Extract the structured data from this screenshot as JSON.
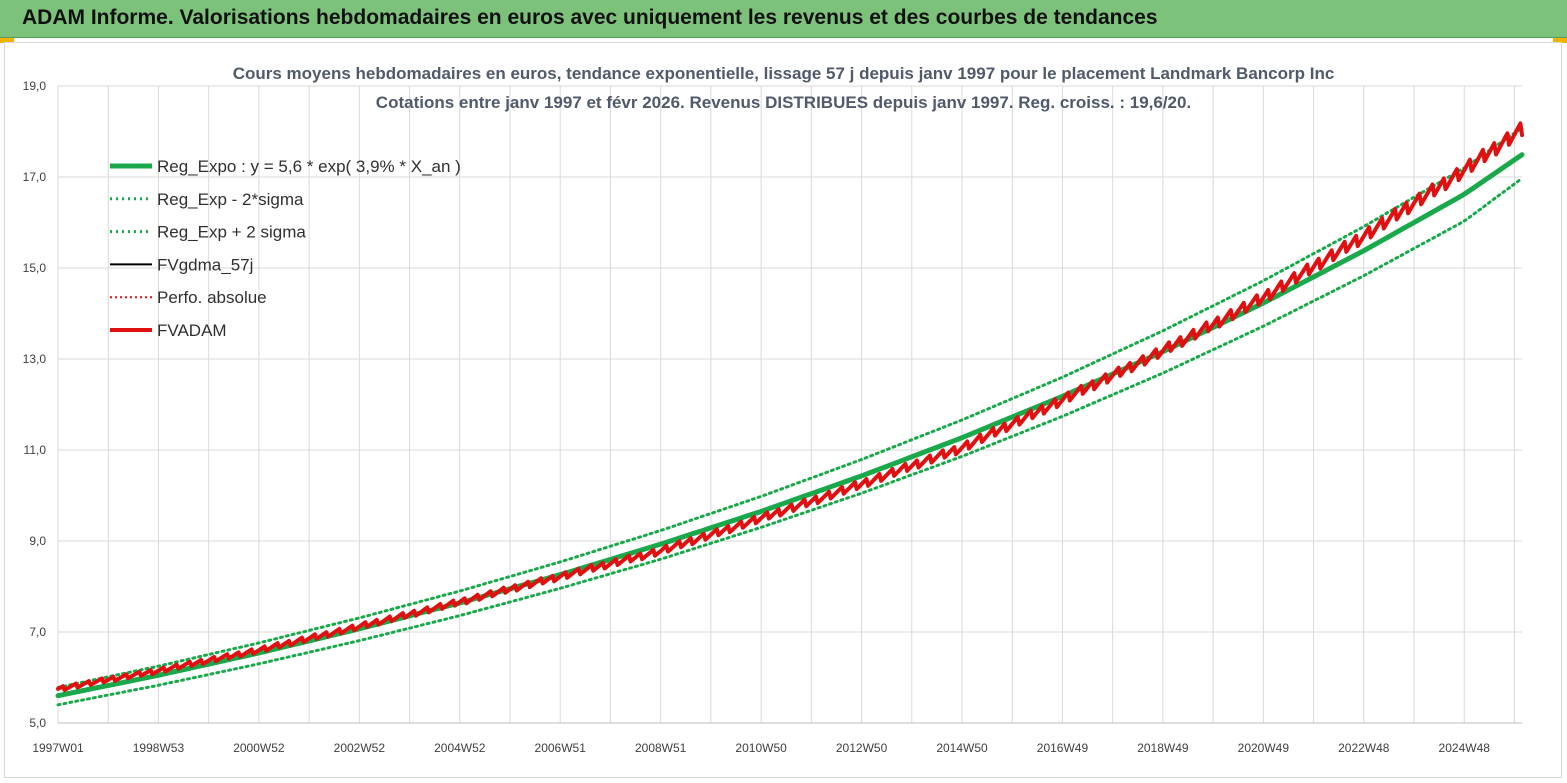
{
  "banner": {
    "title": "ADAM Informe. Valorisations hebdomadaires en euros avec uniquement les revenus et des courbes de tendances"
  },
  "colors": {
    "banner": "#7dc27a",
    "reg_expo": "#19a94a",
    "sigma": "#19a94a",
    "fvgdma": "#000000",
    "perfo": "#e01010",
    "fvadam": "#e01010",
    "grid": "#d9d9d9"
  },
  "chart_data": {
    "type": "line",
    "title": "Cours moyens hebdomadaires en euros, tendance exponentielle, lissage 57 j depuis janv 1997 pour le placement Landmark Bancorp Inc",
    "subtitle": "Cotations entre janv 1997 et févr 2026. Revenus DISTRIBUES depuis janv 1997. Reg. croiss. : 19,6/20.",
    "xlabel": "",
    "ylabel": "",
    "x_ticks": [
      "1997W01",
      "1998W53",
      "2000W52",
      "2002W52",
      "2004W52",
      "2006W51",
      "2008W51",
      "2010W50",
      "2012W50",
      "2014W50",
      "2016W49",
      "2018W49",
      "2020W49",
      "2022W48",
      "2024W48"
    ],
    "x_range": [
      1997.0,
      2026.15
    ],
    "y_ticks": [
      "5,0",
      "7,0",
      "9,0",
      "11,0",
      "13,0",
      "15,0",
      "17,0",
      "19,0"
    ],
    "ylim": [
      5,
      19
    ],
    "grid": true,
    "legend_position": "top-left",
    "series": [
      {
        "key": "reg_expo",
        "name": "Reg_Expo : y = 5,6 * exp( 3,9% *  X_an )",
        "style": "solid-thick",
        "x": [
          1997,
          1999,
          2001,
          2003,
          2005,
          2007,
          2009,
          2011,
          2013,
          2015,
          2017,
          2019,
          2021,
          2023,
          2025,
          2026.15
        ],
        "values": [
          5.6,
          6.05,
          6.54,
          7.07,
          7.64,
          8.26,
          8.93,
          9.65,
          10.43,
          11.27,
          12.18,
          13.16,
          14.23,
          15.38,
          16.62,
          17.49
        ]
      },
      {
        "key": "sigma_minus",
        "name": "Reg_Exp - 2*sigma",
        "style": "dotted",
        "x": [
          1997,
          1999,
          2001,
          2003,
          2005,
          2007,
          2009,
          2011,
          2013,
          2015,
          2017,
          2019,
          2021,
          2023,
          2025,
          2026.15
        ],
        "values": [
          5.4,
          5.83,
          6.3,
          6.81,
          7.36,
          7.96,
          8.6,
          9.3,
          10.05,
          10.86,
          11.74,
          12.69,
          13.72,
          14.83,
          16.03,
          16.97
        ]
      },
      {
        "key": "sigma_plus",
        "name": "Reg_Exp + 2 sigma",
        "style": "dotted",
        "x": [
          1997,
          1999,
          2001,
          2003,
          2005,
          2007,
          2009,
          2011,
          2013,
          2015,
          2017,
          2019,
          2021,
          2023,
          2025,
          2026.15
        ],
        "values": [
          5.78,
          6.25,
          6.76,
          7.31,
          7.9,
          8.54,
          9.23,
          9.98,
          10.79,
          11.66,
          12.6,
          13.62,
          14.72,
          15.91,
          17.2,
          18.08
        ]
      },
      {
        "key": "fvgdma",
        "name": "FVgdma_57j",
        "style": "solid",
        "x": [
          1997,
          1999,
          2001,
          2003,
          2005,
          2007,
          2009,
          2011,
          2013,
          2015,
          2017,
          2019,
          2021,
          2023,
          2025,
          2026.15
        ],
        "values": [
          5.75,
          6.15,
          6.6,
          7.12,
          7.66,
          8.22,
          8.78,
          9.5,
          10.25,
          11.05,
          12.1,
          13.18,
          14.35,
          15.7,
          17.15,
          18.05
        ]
      },
      {
        "key": "perfo",
        "name": "Perfo. absolue",
        "style": "dotted",
        "x": [
          1997,
          1999,
          2001,
          2003,
          2005,
          2007,
          2009,
          2011,
          2013,
          2015,
          2017,
          2019,
          2021,
          2023,
          2025,
          2026.15
        ],
        "values": [
          5.75,
          6.15,
          6.6,
          7.12,
          7.66,
          8.22,
          8.78,
          9.5,
          10.25,
          11.05,
          12.1,
          13.18,
          14.35,
          15.7,
          17.15,
          18.05
        ]
      },
      {
        "key": "fvadam",
        "name": "FVADAM",
        "style": "solid-thick",
        "x": [
          1997,
          1999,
          2001,
          2003,
          2005,
          2007,
          2009,
          2011,
          2013,
          2015,
          2017,
          2019,
          2021,
          2023,
          2025,
          2026.15
        ],
        "values": [
          5.75,
          6.15,
          6.6,
          7.12,
          7.66,
          8.22,
          8.78,
          9.5,
          10.25,
          11.05,
          12.1,
          13.18,
          14.35,
          15.7,
          17.15,
          18.05
        ]
      }
    ]
  }
}
